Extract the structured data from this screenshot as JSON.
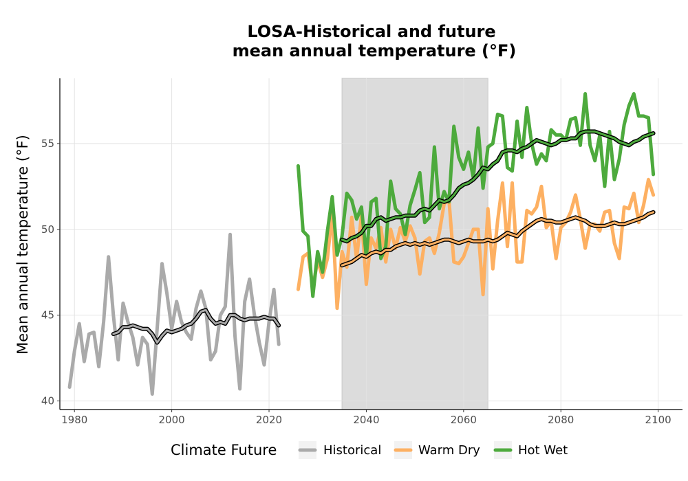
{
  "chart_data": {
    "type": "line",
    "title_line1": "LOSA-Historical and future",
    "title_line2": "mean annual temperature (°F)",
    "xlabel": "",
    "ylabel": "Mean annual temperature (°F)",
    "xlim": [
      1977,
      2105
    ],
    "ylim": [
      39.5,
      58.8
    ],
    "x_ticks": [
      1980,
      2000,
      2020,
      2040,
      2060,
      2080,
      2100
    ],
    "y_ticks": [
      40,
      45,
      50,
      55
    ],
    "grid": true,
    "shaded_period": [
      2035,
      2065
    ],
    "shade_color": "#dcdcdc",
    "legend": {
      "title": "Climate Future",
      "position": "bottom",
      "items": [
        {
          "label": "Historical",
          "color": "#aaaaaa"
        },
        {
          "label": "Warm Dry",
          "color": "#fdb062"
        },
        {
          "label": "Hot Wet",
          "color": "#4daa3d"
        }
      ]
    },
    "series": [
      {
        "name": "Historical",
        "color": "#aaaaaa",
        "x": [
          1979,
          1980,
          1981,
          1982,
          1983,
          1984,
          1985,
          1986,
          1987,
          1988,
          1989,
          1990,
          1991,
          1992,
          1993,
          1994,
          1995,
          1996,
          1997,
          1998,
          1999,
          2000,
          2001,
          2002,
          2003,
          2004,
          2005,
          2006,
          2007,
          2008,
          2009,
          2010,
          2011,
          2012,
          2013,
          2014,
          2015,
          2016,
          2017,
          2018,
          2019,
          2020,
          2021,
          2022
        ],
        "values": [
          40.8,
          42.9,
          44.5,
          42.3,
          43.9,
          44.0,
          42.0,
          44.6,
          48.4,
          45.0,
          42.4,
          45.7,
          44.6,
          43.7,
          42.1,
          43.7,
          43.3,
          40.4,
          44.2,
          48.0,
          46.3,
          44.2,
          45.8,
          44.6,
          44.0,
          43.6,
          45.4,
          46.4,
          45.4,
          42.4,
          42.9,
          45.0,
          45.5,
          49.7,
          43.8,
          40.7,
          45.8,
          47.1,
          45.0,
          43.4,
          42.1,
          44.6,
          46.5,
          43.3
        ]
      },
      {
        "name": "Historical smoothed",
        "color": "#aaaaaa",
        "smoothed": true,
        "x": [
          1988,
          1989,
          1990,
          1991,
          1992,
          1993,
          1994,
          1995,
          1996,
          1997,
          1998,
          1999,
          2000,
          2001,
          2002,
          2003,
          2004,
          2005,
          2006,
          2007,
          2008,
          2009,
          2010,
          2011,
          2012,
          2013,
          2014,
          2015,
          2016,
          2017,
          2018,
          2019,
          2020,
          2021,
          2022
        ],
        "values": [
          43.9,
          44.0,
          44.3,
          44.3,
          44.4,
          44.3,
          44.2,
          44.2,
          43.9,
          43.4,
          43.8,
          44.1,
          44.0,
          44.1,
          44.2,
          44.4,
          44.5,
          44.8,
          45.2,
          45.3,
          44.8,
          44.5,
          44.6,
          44.5,
          45.0,
          45.0,
          44.8,
          44.7,
          44.8,
          44.8,
          44.8,
          44.9,
          44.8,
          44.8,
          44.4
        ]
      },
      {
        "name": "Warm Dry",
        "color": "#fdb062",
        "x": [
          2026,
          2027,
          2028,
          2029,
          2030,
          2031,
          2032,
          2033,
          2034,
          2035,
          2036,
          2037,
          2038,
          2039,
          2040,
          2041,
          2042,
          2043,
          2044,
          2045,
          2046,
          2047,
          2048,
          2049,
          2050,
          2051,
          2052,
          2053,
          2054,
          2055,
          2056,
          2057,
          2058,
          2059,
          2060,
          2061,
          2062,
          2063,
          2064,
          2065,
          2066,
          2067,
          2068,
          2069,
          2070,
          2071,
          2072,
          2073,
          2074,
          2075,
          2076,
          2077,
          2078,
          2079,
          2080,
          2081,
          2082,
          2083,
          2084,
          2085,
          2086,
          2087,
          2088,
          2089,
          2090,
          2091,
          2092,
          2093,
          2094,
          2095,
          2096,
          2097,
          2098,
          2099
        ],
        "values": [
          46.5,
          48.4,
          48.6,
          46.6,
          48.2,
          47.2,
          48.3,
          51.0,
          45.4,
          48.7,
          47.8,
          50.7,
          48.3,
          50.8,
          46.8,
          49.5,
          48.9,
          50.1,
          48.1,
          50.0,
          48.9,
          50.1,
          49.3,
          50.2,
          49.5,
          47.4,
          49.3,
          49.5,
          48.6,
          49.8,
          51.5,
          51.7,
          48.1,
          48.0,
          48.4,
          49.2,
          50.0,
          50.0,
          46.2,
          51.2,
          47.7,
          50.5,
          52.7,
          49.0,
          52.7,
          48.1,
          48.1,
          51.1,
          50.9,
          51.3,
          52.5,
          50.1,
          50.5,
          48.3,
          50.1,
          50.4,
          51.0,
          52.0,
          50.6,
          48.9,
          50.3,
          50.3,
          49.9,
          51.0,
          51.1,
          49.2,
          48.3,
          51.3,
          51.2,
          52.1,
          50.4,
          51.4,
          52.9,
          52.0
        ]
      },
      {
        "name": "Warm Dry smoothed",
        "color": "#fdb062",
        "smoothed": true,
        "x": [
          2035,
          2036,
          2037,
          2038,
          2039,
          2040,
          2041,
          2042,
          2043,
          2044,
          2045,
          2046,
          2047,
          2048,
          2049,
          2050,
          2051,
          2052,
          2053,
          2054,
          2055,
          2056,
          2057,
          2058,
          2059,
          2060,
          2061,
          2062,
          2063,
          2064,
          2065,
          2066,
          2067,
          2068,
          2069,
          2070,
          2071,
          2072,
          2073,
          2074,
          2075,
          2076,
          2077,
          2078,
          2079,
          2080,
          2081,
          2082,
          2083,
          2084,
          2085,
          2086,
          2087,
          2088,
          2089,
          2090,
          2091,
          2092,
          2093,
          2094,
          2095,
          2096,
          2097,
          2098,
          2099
        ],
        "values": [
          47.9,
          48.0,
          48.1,
          48.3,
          48.5,
          48.4,
          48.6,
          48.7,
          48.6,
          48.8,
          48.8,
          49.0,
          49.1,
          49.2,
          49.1,
          49.2,
          49.1,
          49.2,
          49.1,
          49.2,
          49.3,
          49.4,
          49.4,
          49.3,
          49.2,
          49.3,
          49.4,
          49.3,
          49.3,
          49.3,
          49.4,
          49.3,
          49.4,
          49.6,
          49.8,
          49.7,
          49.6,
          49.9,
          50.1,
          50.3,
          50.5,
          50.6,
          50.5,
          50.5,
          50.4,
          50.4,
          50.5,
          50.6,
          50.7,
          50.6,
          50.5,
          50.3,
          50.2,
          50.2,
          50.2,
          50.3,
          50.4,
          50.3,
          50.3,
          50.4,
          50.5,
          50.6,
          50.7,
          50.9,
          51.0
        ]
      },
      {
        "name": "Hot Wet",
        "color": "#4daa3d",
        "x": [
          2026,
          2027,
          2028,
          2029,
          2030,
          2031,
          2032,
          2033,
          2034,
          2035,
          2036,
          2037,
          2038,
          2039,
          2040,
          2041,
          2042,
          2043,
          2044,
          2045,
          2046,
          2047,
          2048,
          2049,
          2050,
          2051,
          2052,
          2053,
          2054,
          2055,
          2056,
          2057,
          2058,
          2059,
          2060,
          2061,
          2062,
          2063,
          2064,
          2065,
          2066,
          2067,
          2068,
          2069,
          2070,
          2071,
          2072,
          2073,
          2074,
          2075,
          2076,
          2077,
          2078,
          2079,
          2080,
          2081,
          2082,
          2083,
          2084,
          2085,
          2086,
          2087,
          2088,
          2089,
          2090,
          2091,
          2092,
          2093,
          2094,
          2095,
          2096,
          2097,
          2098,
          2099
        ],
        "values": [
          53.7,
          49.9,
          49.6,
          46.1,
          48.7,
          47.5,
          49.9,
          51.9,
          48.5,
          49.6,
          52.1,
          51.7,
          50.6,
          51.3,
          48.4,
          51.6,
          51.8,
          48.3,
          49.0,
          52.8,
          51.2,
          50.9,
          49.7,
          51.4,
          52.3,
          53.3,
          50.4,
          50.7,
          54.8,
          51.2,
          52.2,
          51.6,
          56.0,
          54.2,
          53.5,
          54.5,
          53.0,
          55.9,
          52.4,
          54.8,
          55.0,
          56.7,
          56.6,
          53.6,
          53.4,
          56.3,
          54.2,
          57.1,
          55.0,
          53.8,
          54.4,
          54.0,
          55.8,
          55.5,
          55.5,
          55.2,
          56.4,
          56.5,
          54.9,
          57.9,
          54.9,
          54.0,
          55.5,
          52.5,
          55.7,
          52.9,
          54.1,
          56.1,
          57.2,
          57.9,
          56.6,
          56.6,
          56.5,
          53.2
        ]
      },
      {
        "name": "Hot Wet smoothed",
        "color": "#4daa3d",
        "smoothed": true,
        "x": [
          2035,
          2036,
          2037,
          2038,
          2039,
          2040,
          2041,
          2042,
          2043,
          2044,
          2045,
          2046,
          2047,
          2048,
          2049,
          2050,
          2051,
          2052,
          2053,
          2054,
          2055,
          2056,
          2057,
          2058,
          2059,
          2060,
          2061,
          2062,
          2063,
          2064,
          2065,
          2066,
          2067,
          2068,
          2069,
          2070,
          2071,
          2072,
          2073,
          2074,
          2075,
          2076,
          2077,
          2078,
          2079,
          2080,
          2081,
          2082,
          2083,
          2084,
          2085,
          2086,
          2087,
          2088,
          2089,
          2090,
          2091,
          2092,
          2093,
          2094,
          2095,
          2096,
          2097,
          2098,
          2099
        ],
        "values": [
          49.4,
          49.3,
          49.5,
          49.6,
          49.8,
          50.2,
          50.2,
          50.6,
          50.7,
          50.5,
          50.6,
          50.7,
          50.7,
          50.8,
          50.8,
          50.8,
          51.1,
          51.2,
          51.1,
          51.4,
          51.7,
          51.6,
          51.7,
          52.0,
          52.4,
          52.6,
          52.7,
          52.9,
          53.2,
          53.6,
          53.5,
          53.8,
          54.0,
          54.5,
          54.6,
          54.6,
          54.5,
          54.7,
          54.8,
          55.0,
          55.2,
          55.1,
          55.0,
          54.9,
          55.0,
          55.2,
          55.2,
          55.3,
          55.3,
          55.6,
          55.7,
          55.7,
          55.7,
          55.6,
          55.5,
          55.4,
          55.3,
          55.1,
          55.0,
          54.9,
          55.1,
          55.2,
          55.4,
          55.5,
          55.6
        ]
      }
    ]
  }
}
